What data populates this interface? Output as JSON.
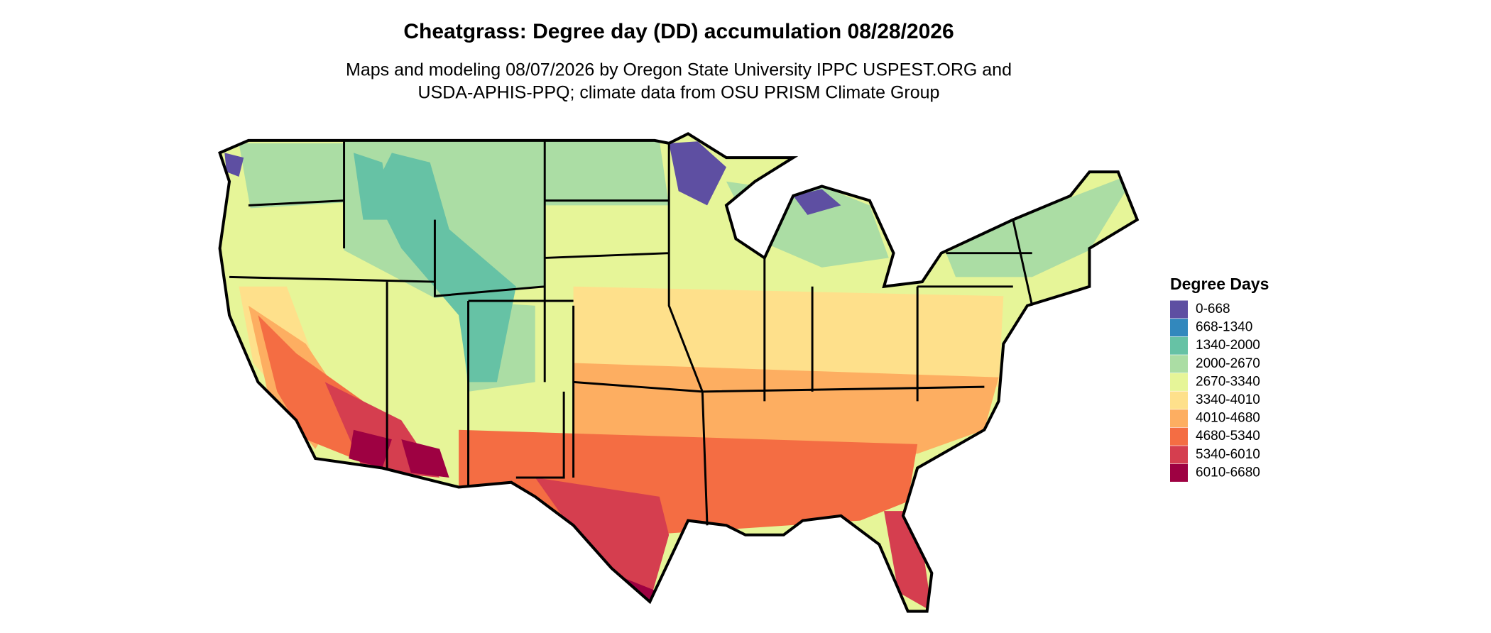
{
  "header": {
    "title": "Cheatgrass: Degree day (DD) accumulation 08/28/2026",
    "subtitle": [
      "Maps and modeling 08/07/2026 by Oregon State University IPPC USPEST.ORG and",
      "USDA-APHIS-PPQ; climate data from OSU PRISM Climate Group"
    ]
  },
  "legend": {
    "title": "Degree Days",
    "items": [
      {
        "label": "0-668",
        "color": "#5e4fa2"
      },
      {
        "label": "668-1340",
        "color": "#3288bd"
      },
      {
        "label": "1340-2000",
        "color": "#66c2a5"
      },
      {
        "label": "2000-2670",
        "color": "#abdda4"
      },
      {
        "label": "2670-3340",
        "color": "#e6f598"
      },
      {
        "label": "3340-4010",
        "color": "#fee08b"
      },
      {
        "label": "4010-4680",
        "color": "#fdae61"
      },
      {
        "label": "4680-5340",
        "color": "#f46d43"
      },
      {
        "label": "5340-6010",
        "color": "#d53e4f"
      },
      {
        "label": "6010-6680",
        "color": "#9e0142"
      }
    ]
  }
}
